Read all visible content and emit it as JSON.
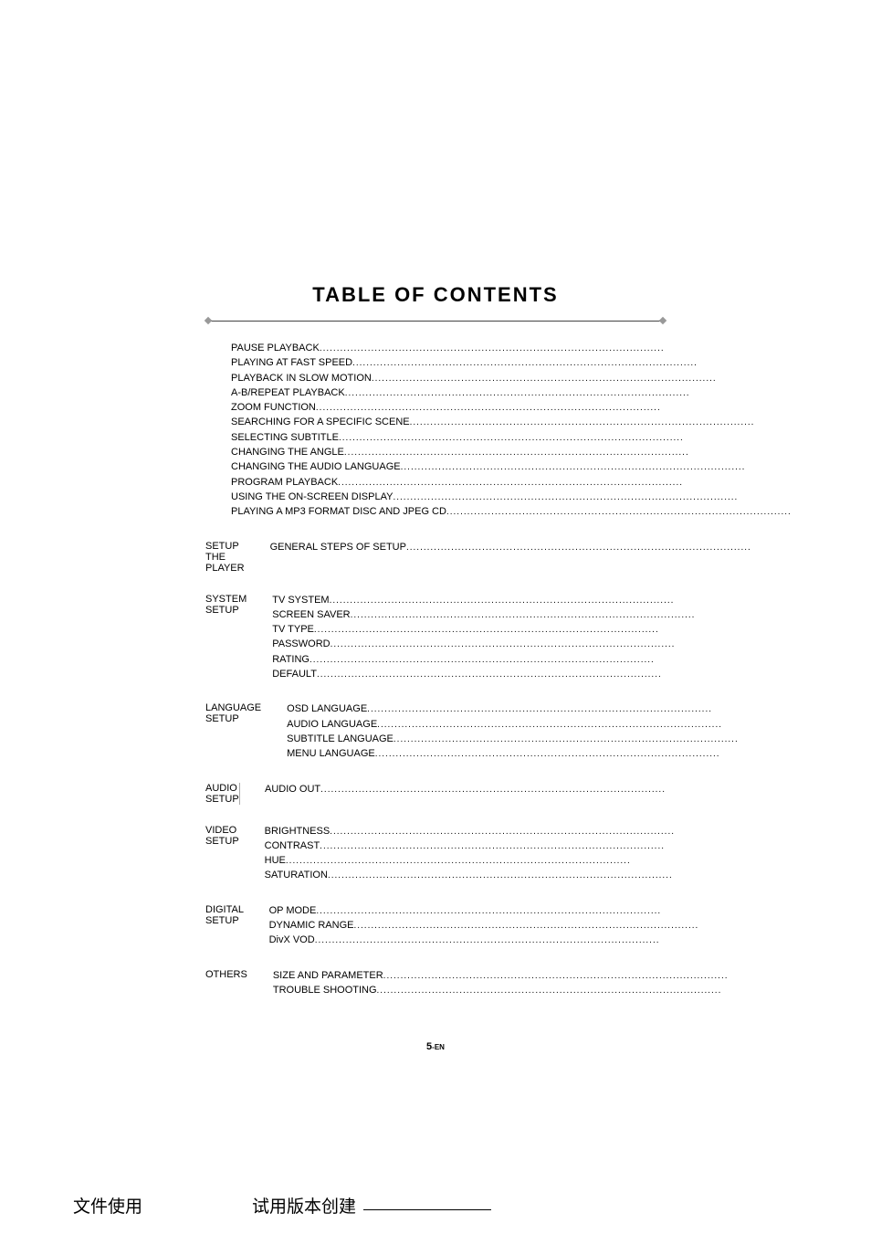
{
  "title": "TABLE OF CONTENTS",
  "sections": [
    {
      "heading": "",
      "items": [
        "PAUSE PLAYBACK",
        "PLAYING AT FAST SPEED",
        "PLAYBACK IN SLOW MOTION",
        "A-B/REPEAT PLAYBACK",
        "ZOOM FUNCTION",
        "SEARCHING FOR A SPECIFIC SCENE",
        "SELECTING SUBTITLE",
        "CHANGING THE ANGLE",
        "CHANGING THE AUDIO LANGUAGE",
        "PROGRAM PLAYBACK",
        "USING THE ON-SCREEN DISPLAY",
        "PLAYING A MP3 FORMAT DISC AND JPEG CD"
      ]
    },
    {
      "heading": "SETUP THE PLAYER",
      "items": [
        "GENERAL STEPS OF SETUP"
      ]
    },
    {
      "heading": "SYSTEM SETUP",
      "items": [
        "TV SYSTEM",
        "SCREEN SAVER",
        "TV TYPE",
        "PASSWORD",
        "RATING",
        "DEFAULT"
      ]
    },
    {
      "heading": "LANGUAGE SETUP",
      "items": [
        "OSD LANGUAGE",
        "AUDIO LANGUAGE",
        "SUBTITLE LANGUAGE",
        "MENU LANGUAGE"
      ]
    },
    {
      "heading": "AUDIO SETUP",
      "items": [
        "AUDIO OUT"
      ]
    },
    {
      "heading": "VIDEO SETUP",
      "items": [
        "BRIGHTNESS",
        "CONTRAST",
        "HUE",
        "SATURATION"
      ]
    },
    {
      "heading": "DIGITAL SETUP",
      "items": [
        "OP MODE",
        "DYNAMIC RANGE",
        "DivX VOD"
      ]
    },
    {
      "heading": "OTHERS",
      "items": [
        "SIZE AND PARAMETER",
        "TROUBLE SHOOTING"
      ]
    }
  ],
  "page_number": "5",
  "page_suffix": "-EN",
  "footer_left": "文件使用",
  "footer_center": "试用版本创建",
  "colors": {
    "background": "#ffffff",
    "text": "#000000",
    "divider": "#aaaaaa",
    "diamond": "#999999",
    "hr": "#444444"
  },
  "typography": {
    "title_fontsize": 22,
    "body_fontsize": 11,
    "footer_fontsize": 19
  }
}
